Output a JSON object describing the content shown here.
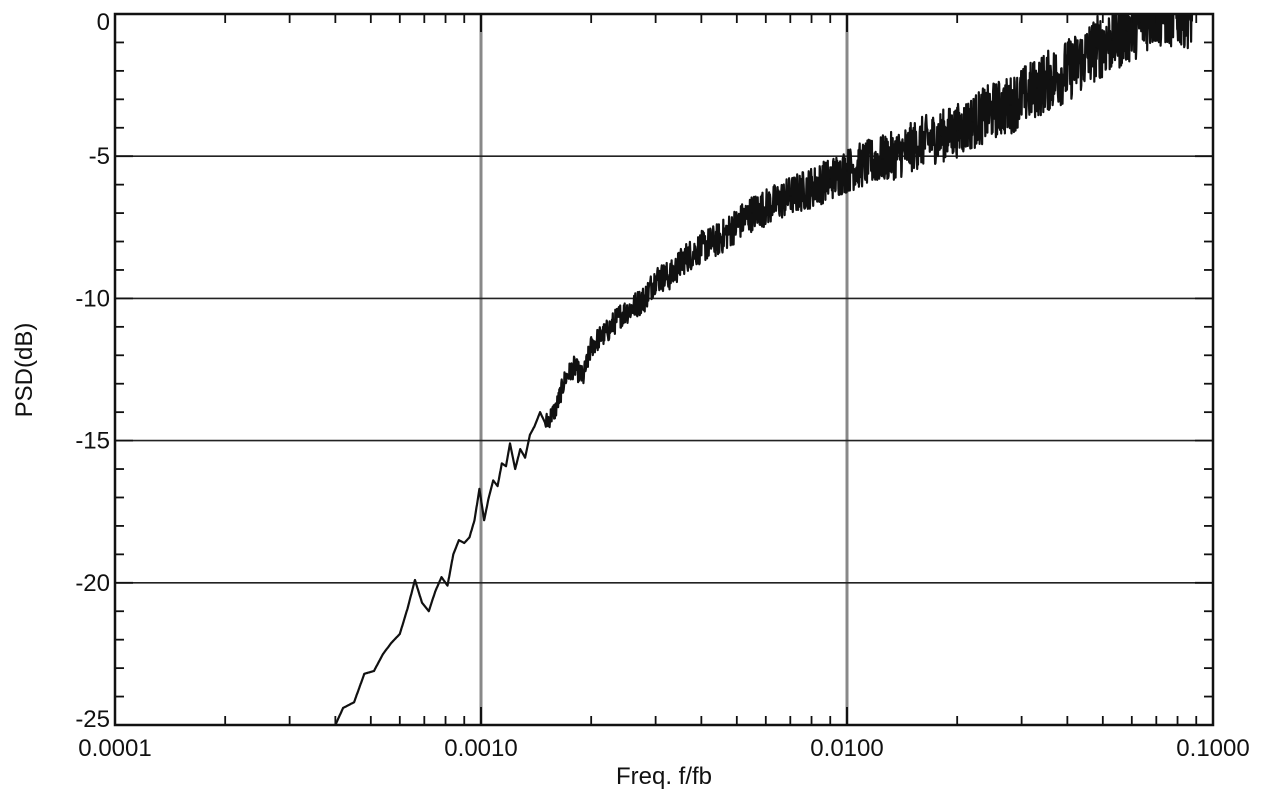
{
  "chart_data": {
    "type": "line",
    "title": "",
    "xlabel": "Freq. f/fb",
    "ylabel": "PSD(dB)",
    "x_scale": "log",
    "xlim": [
      0.0001,
      0.1
    ],
    "ylim": [
      -25,
      0
    ],
    "x_ticks": [
      {
        "value": 0.0001,
        "label": "0.0001"
      },
      {
        "value": 0.001,
        "label": "0.0010"
      },
      {
        "value": 0.01,
        "label": "0.0100"
      },
      {
        "value": 0.1,
        "label": "0.1000"
      }
    ],
    "y_ticks": [
      {
        "value": 0,
        "label": "0"
      },
      {
        "value": -5,
        "label": "-5"
      },
      {
        "value": -10,
        "label": "-10"
      },
      {
        "value": -15,
        "label": "-15"
      },
      {
        "value": -20,
        "label": "-20"
      },
      {
        "value": -25,
        "label": "-25"
      }
    ],
    "grid": true,
    "colors": {
      "line": "#111111",
      "grid_horizontal": "#222222",
      "grid_vertical": "#888888",
      "frame": "#111111"
    },
    "series": [
      {
        "x": [
          0.0004,
          0.00042,
          0.00045,
          0.00048,
          0.00051,
          0.00054,
          0.00057,
          0.0006,
          0.00063,
          0.00066,
          0.00069,
          0.00072,
          0.00075,
          0.00078,
          0.00081,
          0.00084,
          0.00087,
          0.0009,
          0.00093,
          0.00096,
          0.00099,
          0.00102,
          0.00105,
          0.00108,
          0.00111,
          0.00114,
          0.00117,
          0.0012,
          0.00124,
          0.00128,
          0.00132,
          0.00136,
          0.0014,
          0.00145,
          0.0015,
          0.0016,
          0.0017,
          0.0018,
          0.0019,
          0.002,
          0.0021,
          0.0022,
          0.0024,
          0.0026,
          0.0028,
          0.003,
          0.0033,
          0.0036,
          0.004,
          0.0045,
          0.005,
          0.0055,
          0.006,
          0.007,
          0.008,
          0.009,
          0.01,
          0.011,
          0.0125,
          0.014,
          0.016,
          0.018,
          0.02,
          0.022,
          0.025,
          0.028,
          0.03,
          0.033,
          0.036,
          0.04,
          0.044,
          0.048,
          0.053,
          0.058,
          0.063,
          0.068,
          0.073,
          0.078,
          0.083,
          0.088
        ],
        "values": [
          -25.0,
          -24.4,
          -24.2,
          -23.2,
          -23.1,
          -22.5,
          -22.1,
          -21.8,
          -20.9,
          -19.9,
          -20.7,
          -21.0,
          -20.3,
          -19.8,
          -20.1,
          -19.0,
          -18.5,
          -18.6,
          -18.4,
          -17.8,
          -16.7,
          -17.8,
          -17.0,
          -16.4,
          -16.6,
          -15.8,
          -15.9,
          -15.1,
          -16.0,
          -15.3,
          -15.6,
          -14.8,
          -14.5,
          -14.0,
          -14.4,
          -13.9,
          -12.8,
          -12.4,
          -12.8,
          -11.7,
          -11.4,
          -11.2,
          -10.6,
          -10.3,
          -10.0,
          -9.3,
          -9.2,
          -8.6,
          -8.2,
          -7.9,
          -7.4,
          -7.0,
          -6.8,
          -6.4,
          -6.1,
          -5.8,
          -5.5,
          -5.3,
          -5.1,
          -4.9,
          -4.5,
          -4.3,
          -4.1,
          -3.8,
          -3.4,
          -3.2,
          -2.9,
          -2.6,
          -2.3,
          -2.0,
          -1.6,
          -1.2,
          -0.9,
          -0.6,
          -0.3,
          0.0,
          0.0,
          0.0,
          0.0,
          0.0
        ]
      }
    ]
  }
}
